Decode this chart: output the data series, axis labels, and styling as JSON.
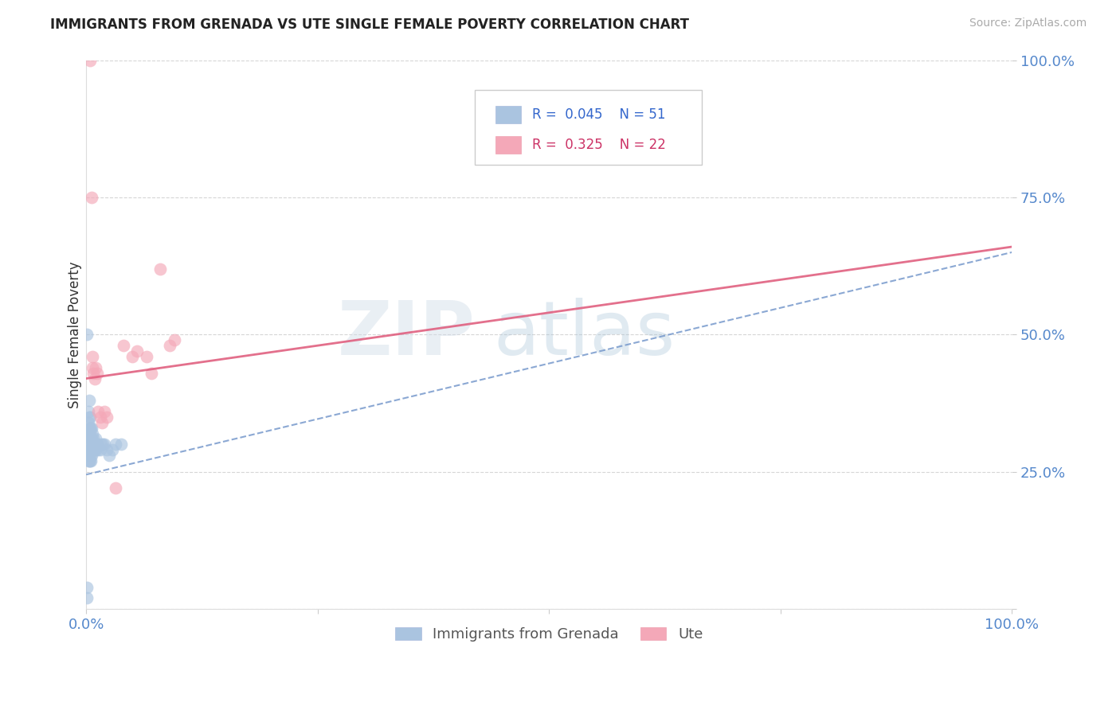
{
  "title": "IMMIGRANTS FROM GRENADA VS UTE SINGLE FEMALE POVERTY CORRELATION CHART",
  "source": "Source: ZipAtlas.com",
  "ylabel": "Single Female Poverty",
  "xlim": [
    0,
    1
  ],
  "ylim": [
    0,
    1
  ],
  "xtick_labels": [
    "0.0%",
    "",
    "",
    "",
    "100.0%"
  ],
  "ytick_labels": [
    "",
    "25.0%",
    "50.0%",
    "75.0%",
    "100.0%"
  ],
  "blue_label": "Immigrants from Grenada",
  "pink_label": "Ute",
  "blue_R": 0.045,
  "blue_N": 51,
  "pink_R": 0.325,
  "pink_N": 22,
  "blue_color": "#aac4e0",
  "pink_color": "#f4a8b8",
  "blue_line_color": "#7799cc",
  "pink_line_color": "#e06080",
  "blue_trend_start": 0.245,
  "blue_trend_end": 0.65,
  "pink_trend_start": 0.42,
  "pink_trend_end": 0.66,
  "blue_scatter_x": [
    0.001,
    0.001,
    0.001,
    0.001,
    0.002,
    0.002,
    0.002,
    0.002,
    0.002,
    0.003,
    0.003,
    0.003,
    0.003,
    0.003,
    0.003,
    0.004,
    0.004,
    0.004,
    0.004,
    0.004,
    0.005,
    0.005,
    0.005,
    0.005,
    0.005,
    0.005,
    0.006,
    0.006,
    0.006,
    0.006,
    0.007,
    0.007,
    0.007,
    0.008,
    0.008,
    0.009,
    0.009,
    0.01,
    0.01,
    0.011,
    0.012,
    0.013,
    0.015,
    0.016,
    0.018,
    0.02,
    0.022,
    0.025,
    0.028,
    0.032,
    0.038
  ],
  "blue_scatter_y": [
    0.02,
    0.04,
    0.28,
    0.5,
    0.27,
    0.29,
    0.32,
    0.34,
    0.36,
    0.27,
    0.29,
    0.31,
    0.33,
    0.35,
    0.38,
    0.27,
    0.29,
    0.31,
    0.33,
    0.35,
    0.27,
    0.28,
    0.29,
    0.3,
    0.31,
    0.33,
    0.28,
    0.29,
    0.31,
    0.33,
    0.29,
    0.3,
    0.32,
    0.29,
    0.31,
    0.29,
    0.3,
    0.29,
    0.31,
    0.3,
    0.3,
    0.29,
    0.29,
    0.3,
    0.3,
    0.3,
    0.29,
    0.28,
    0.29,
    0.3,
    0.3
  ],
  "pink_scatter_x": [
    0.004,
    0.006,
    0.007,
    0.007,
    0.008,
    0.009,
    0.01,
    0.012,
    0.013,
    0.015,
    0.017,
    0.02,
    0.022,
    0.032,
    0.04,
    0.05,
    0.055,
    0.065,
    0.07,
    0.08,
    0.09,
    0.095
  ],
  "pink_scatter_y": [
    1.0,
    0.75,
    0.46,
    0.44,
    0.43,
    0.42,
    0.44,
    0.43,
    0.36,
    0.35,
    0.34,
    0.36,
    0.35,
    0.22,
    0.48,
    0.46,
    0.47,
    0.46,
    0.43,
    0.62,
    0.48,
    0.49
  ]
}
